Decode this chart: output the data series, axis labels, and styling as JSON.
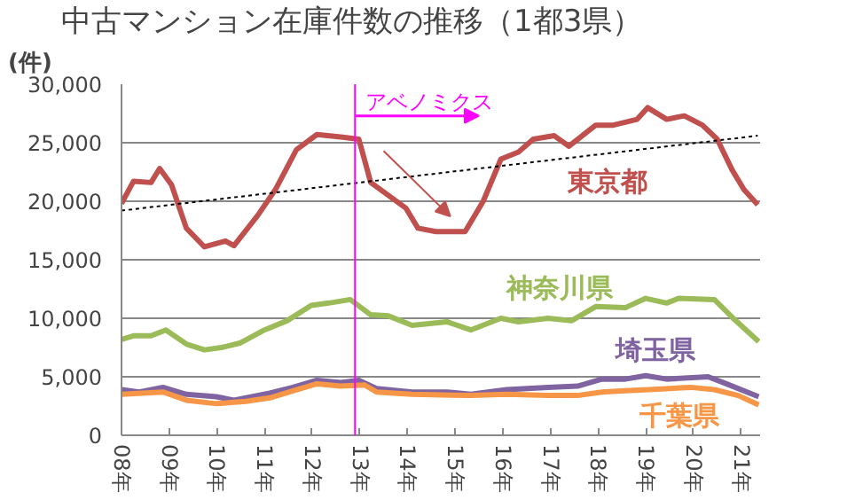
{
  "chart_data": {
    "type": "line",
    "title": "中古マンション在庫件数の推移（1都3県）",
    "ylabel": "(件)",
    "ylim": [
      0,
      30000
    ],
    "yticks": [
      {
        "value": 0,
        "label": "0"
      },
      {
        "value": 5000,
        "label": "5,000"
      },
      {
        "value": 10000,
        "label": "10,000"
      },
      {
        "value": 15000,
        "label": "15,000"
      },
      {
        "value": 20000,
        "label": "20,000"
      },
      {
        "value": 25000,
        "label": "25,000"
      },
      {
        "value": 30000,
        "label": "30,000"
      }
    ],
    "xlim": [
      8,
      21.4
    ],
    "xticks": [
      {
        "value": 8,
        "label": "08年"
      },
      {
        "value": 9,
        "label": "09年"
      },
      {
        "value": 10,
        "label": "10年"
      },
      {
        "value": 11,
        "label": "11年"
      },
      {
        "value": 12,
        "label": "12年"
      },
      {
        "value": 13,
        "label": "13年"
      },
      {
        "value": 14,
        "label": "14年"
      },
      {
        "value": 15,
        "label": "15年"
      },
      {
        "value": 16,
        "label": "16年"
      },
      {
        "value": 17,
        "label": "17年"
      },
      {
        "value": 18,
        "label": "18年"
      },
      {
        "value": 19,
        "label": "19年"
      },
      {
        "value": 20,
        "label": "20年"
      },
      {
        "value": 21,
        "label": "21年"
      }
    ],
    "grid": "y",
    "legend": false,
    "line_style": "solid",
    "series": [
      {
        "name": "東京都",
        "color": "#c0504d",
        "x": [
          8.0,
          8.25,
          8.62,
          8.8,
          9.05,
          9.36,
          9.74,
          10.18,
          10.36,
          10.86,
          11.23,
          11.67,
          12.1,
          12.6,
          12.98,
          13.23,
          13.6,
          13.97,
          14.22,
          14.6,
          15.21,
          15.59,
          15.96,
          16.33,
          16.64,
          17.08,
          17.39,
          17.95,
          18.32,
          18.82,
          19.04,
          19.44,
          19.81,
          20.19,
          20.5,
          20.81,
          21.06,
          21.35
        ],
        "values": [
          19800,
          21700,
          21600,
          22800,
          21400,
          17700,
          16100,
          16600,
          16200,
          18800,
          21000,
          24400,
          25700,
          25500,
          25300,
          21600,
          20500,
          19400,
          17700,
          17400,
          17400,
          20000,
          23600,
          24200,
          25300,
          25600,
          24700,
          26500,
          26500,
          27000,
          28000,
          27000,
          27300,
          26500,
          25300,
          22700,
          21000,
          19700
        ]
      },
      {
        "name": "神奈川県",
        "color": "#9bbb59",
        "x": [
          8.0,
          8.25,
          8.62,
          8.93,
          9.36,
          9.74,
          10.1,
          10.5,
          11.0,
          11.48,
          11.98,
          12.35,
          12.8,
          13.23,
          13.6,
          14.1,
          14.83,
          15.33,
          15.96,
          16.33,
          16.95,
          17.45,
          17.95,
          18.57,
          19.0,
          19.44,
          19.69,
          20.44,
          20.81,
          21.37
        ],
        "values": [
          8200,
          8500,
          8500,
          9000,
          7800,
          7300,
          7500,
          7900,
          9000,
          9800,
          11100,
          11300,
          11600,
          10300,
          10200,
          9400,
          9700,
          9000,
          10000,
          9700,
          10000,
          9800,
          11000,
          10900,
          11700,
          11300,
          11700,
          11600,
          10100,
          8000
        ]
      },
      {
        "name": "埼玉県",
        "color": "#8064a2",
        "x": [
          8.0,
          8.37,
          8.87,
          9.36,
          9.99,
          10.36,
          11.11,
          11.6,
          12.1,
          12.6,
          12.98,
          13.35,
          14.1,
          14.83,
          15.33,
          16.08,
          16.95,
          17.57,
          18.08,
          18.57,
          19.0,
          19.44,
          20.31,
          20.69,
          21.37
        ],
        "values": [
          3900,
          3700,
          4100,
          3500,
          3300,
          3000,
          3600,
          4100,
          4700,
          4500,
          4700,
          4000,
          3700,
          3700,
          3500,
          3900,
          4100,
          4200,
          4800,
          4800,
          5100,
          4800,
          5000,
          4400,
          3300
        ]
      },
      {
        "name": "千葉県",
        "color": "#f79646",
        "x": [
          8.0,
          8.87,
          9.36,
          9.99,
          10.61,
          11.11,
          11.6,
          12.1,
          12.6,
          13.1,
          13.35,
          14.1,
          15.33,
          16.08,
          16.95,
          17.57,
          18.08,
          18.57,
          19.07,
          19.94,
          20.44,
          20.94,
          21.37
        ],
        "values": [
          3500,
          3700,
          3000,
          2700,
          2900,
          3200,
          3800,
          4400,
          4200,
          4300,
          3700,
          3500,
          3400,
          3500,
          3400,
          3400,
          3700,
          3800,
          3900,
          4100,
          3900,
          3400,
          2600
        ]
      },
      {
        "type": "line",
        "color": "#000000",
        "line_style": "dashed",
        "x": [
          8.0,
          21.35
        ],
        "values": [
          19200,
          25600
        ]
      }
    ],
    "ref_lines": [
      {
        "axis": "x",
        "value": 12.9,
        "color": "#ff00ff"
      }
    ],
    "annotations": [
      {
        "text": "アベノミクス",
        "x": 12.9,
        "y": 28500
      }
    ]
  }
}
